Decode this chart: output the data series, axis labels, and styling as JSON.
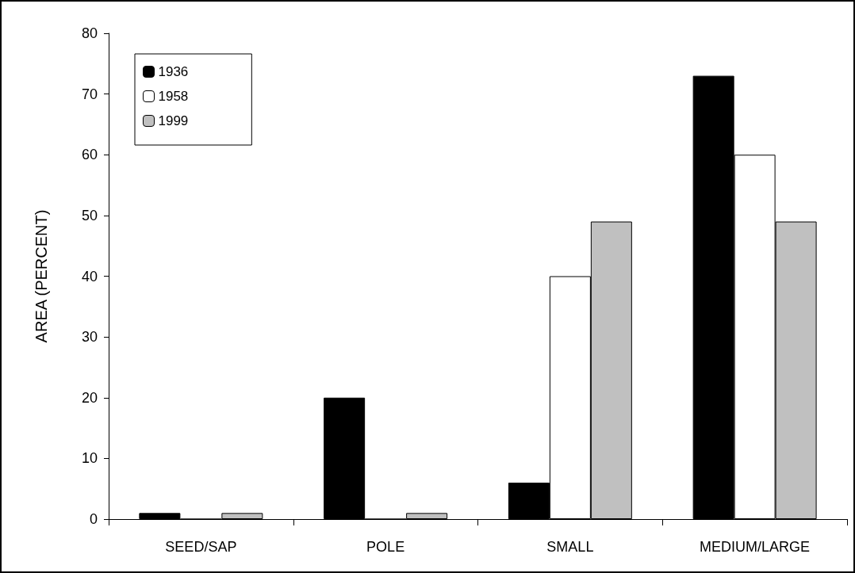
{
  "chart_data": {
    "type": "bar",
    "ylabel": "AREA (PERCENT)",
    "categories": [
      "SEED/SAP",
      "POLE",
      "SMALL",
      "MEDIUM/LARGE"
    ],
    "series": [
      {
        "name": "1936",
        "color": "#000000",
        "values": [
          1,
          20,
          6,
          73
        ]
      },
      {
        "name": "1958",
        "color": "#ffffff",
        "values": [
          0,
          0,
          40,
          60
        ]
      },
      {
        "name": "1999",
        "color": "#c0c0c0",
        "values": [
          1,
          1,
          49,
          49
        ]
      }
    ],
    "ylim": [
      0,
      80
    ],
    "yticks": [
      0,
      10,
      20,
      30,
      40,
      50,
      60,
      70,
      80
    ],
    "legend": "top left"
  }
}
